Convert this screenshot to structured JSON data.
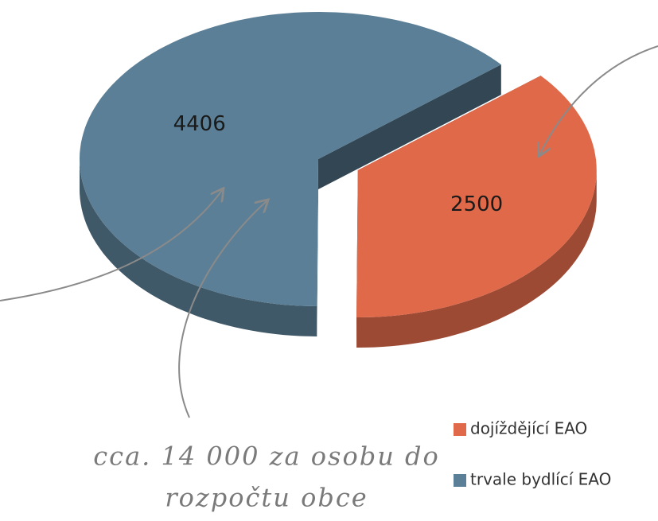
{
  "chart_data": {
    "type": "pie",
    "categories": [
      "dojíždějící EAO",
      "trvale bydlící EAO"
    ],
    "values": [
      2500,
      4406
    ],
    "colors": [
      "#e0694a",
      "#5b7f96"
    ],
    "legend": "bottom-right",
    "annotation": [
      "cca. 14 000 za osobu do",
      "rozpočtu obce"
    ]
  }
}
